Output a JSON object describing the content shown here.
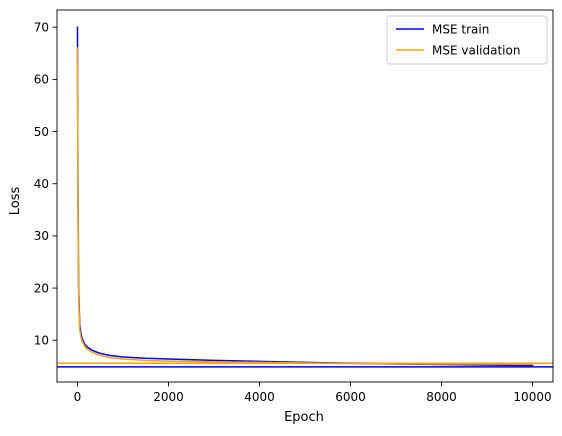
{
  "chart_data": {
    "type": "line",
    "title": "",
    "xlabel": "Epoch",
    "ylabel": "Loss",
    "xlim": [
      -450,
      10450
    ],
    "ylim": [
      2.0,
      73.3
    ],
    "xticks": [
      0,
      2000,
      4000,
      6000,
      8000,
      10000
    ],
    "yticks": [
      10,
      20,
      30,
      40,
      50,
      60,
      70
    ],
    "grid": false,
    "legend_position": "top-right",
    "series": [
      {
        "name": "MSE train",
        "color": "#0000ff",
        "x": [
          0,
          10,
          25,
          50,
          75,
          100,
          150,
          200,
          300,
          400,
          500,
          700,
          1000,
          1500,
          2000,
          3000,
          4000,
          5000,
          6000,
          7000,
          8000,
          9000,
          10000
        ],
        "y": [
          70.0,
          40.0,
          20.0,
          13.0,
          11.3,
          10.4,
          9.4,
          8.8,
          8.2,
          7.8,
          7.5,
          7.1,
          6.8,
          6.55,
          6.4,
          6.15,
          5.95,
          5.75,
          5.6,
          5.45,
          5.35,
          5.25,
          5.15
        ]
      },
      {
        "name": "MSE validation",
        "color": "#ffa500",
        "x": [
          0,
          10,
          25,
          50,
          75,
          100,
          150,
          200,
          300,
          400,
          500,
          700,
          1000,
          1500,
          2000,
          3000,
          4000,
          5000,
          6000,
          7000,
          8000,
          9000,
          10000
        ],
        "y": [
          66.0,
          36.0,
          18.0,
          12.0,
          10.6,
          9.9,
          9.0,
          8.4,
          7.8,
          7.4,
          7.1,
          6.7,
          6.4,
          6.15,
          6.0,
          5.85,
          5.75,
          5.65,
          5.55,
          5.5,
          5.45,
          5.45,
          5.4
        ]
      }
    ],
    "reference_lines": [
      {
        "axis": "y",
        "value": 4.9,
        "color": "#0000ff"
      },
      {
        "axis": "y",
        "value": 5.6,
        "color": "#ffa500"
      }
    ]
  }
}
